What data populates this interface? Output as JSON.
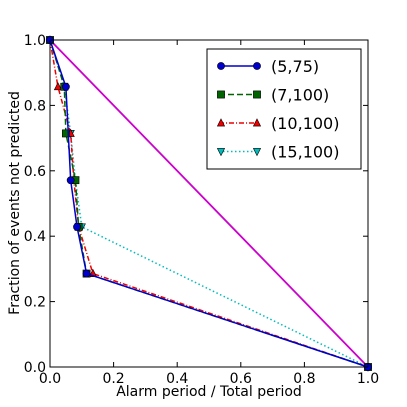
{
  "chart_data": {
    "type": "line",
    "xlabel": "Alarm period / Total period",
    "ylabel": "Fraction of events not predicted",
    "xlim": [
      0.0,
      1.0
    ],
    "ylim": [
      0.0,
      1.0
    ],
    "xticks": [
      "0.0",
      "0.2",
      "0.4",
      "0.6",
      "0.8",
      "1.0"
    ],
    "yticks": [
      "0.0",
      "0.2",
      "0.4",
      "0.6",
      "0.8",
      "1.0"
    ],
    "grid": false,
    "legend_position": "top-right",
    "series": [
      {
        "name": "(5,75)",
        "color": "#0000cc",
        "line_style": "solid",
        "marker": "circle",
        "points": [
          [
            0.0,
            1.0
          ],
          [
            0.05,
            0.857
          ],
          [
            0.065,
            0.571
          ],
          [
            0.085,
            0.4286
          ],
          [
            0.115,
            0.2857
          ],
          [
            1.0,
            0.0
          ]
        ]
      },
      {
        "name": "(7,100)",
        "color": "#006400",
        "line_style": "dashed",
        "marker": "square",
        "points": [
          [
            0.0,
            1.0
          ],
          [
            0.045,
            0.857
          ],
          [
            0.05,
            0.7143
          ],
          [
            0.08,
            0.5714
          ],
          [
            0.09,
            0.4286
          ],
          [
            0.115,
            0.2857
          ],
          [
            1.0,
            0.0
          ]
        ]
      },
      {
        "name": "(10,100)",
        "color": "#ee0000",
        "line_style": "dashdot",
        "marker": "triangle-up",
        "points": [
          [
            0.0,
            1.0
          ],
          [
            0.025,
            0.857
          ],
          [
            0.065,
            0.7143
          ],
          [
            0.075,
            0.5714
          ],
          [
            0.09,
            0.4286
          ],
          [
            0.135,
            0.2857
          ],
          [
            1.0,
            0.0
          ]
        ]
      },
      {
        "name": "(15,100)",
        "color": "#00bbbb",
        "line_style": "dotted",
        "marker": "triangle-down",
        "points": [
          [
            0.0,
            1.0
          ],
          [
            0.045,
            0.857
          ],
          [
            0.065,
            0.7143
          ],
          [
            0.08,
            0.5714
          ],
          [
            0.1,
            0.4286
          ],
          [
            1.0,
            0.0
          ]
        ]
      },
      {
        "name": "",
        "color": "#cc00cc",
        "line_style": "solid",
        "marker": "none",
        "points": [
          [
            0.0,
            1.0
          ],
          [
            1.0,
            0.0
          ]
        ]
      }
    ]
  }
}
